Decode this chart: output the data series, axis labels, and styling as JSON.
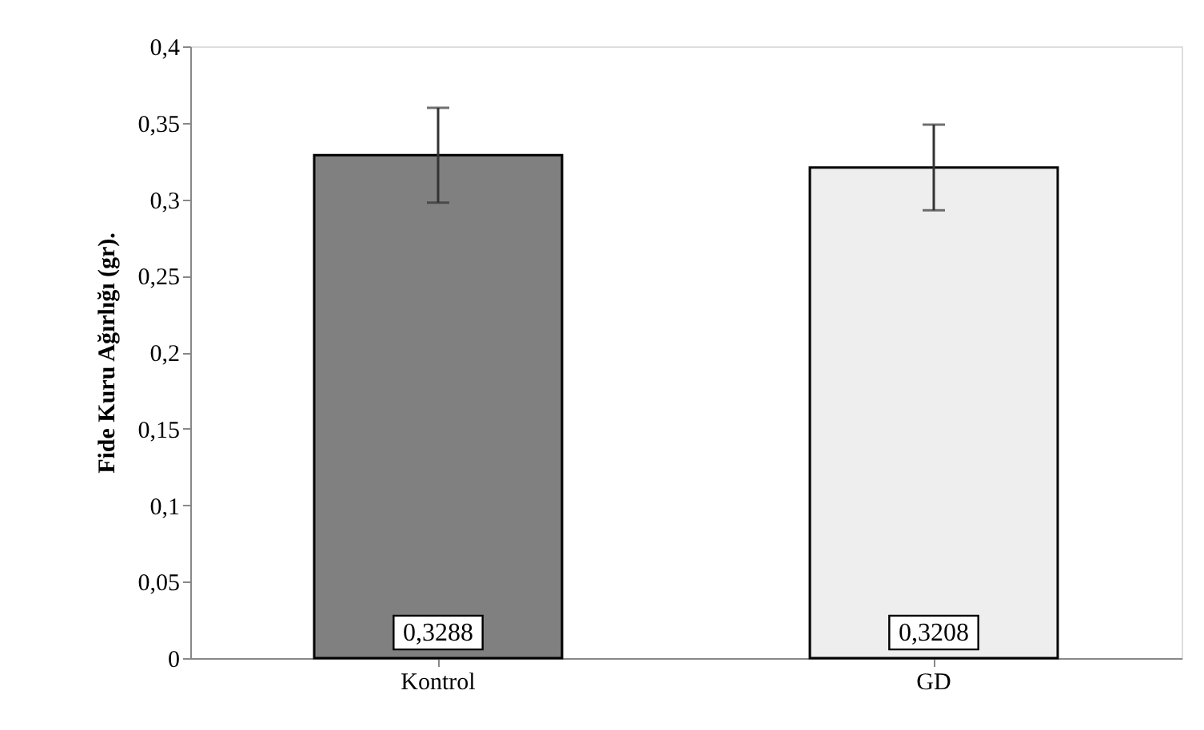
{
  "chart_data": {
    "type": "bar",
    "ylabel": "Fide Kuru Ağırlığı (gr).",
    "categories": [
      "Kontrol",
      "GD"
    ],
    "values": [
      0.3288,
      0.3208
    ],
    "colors": [
      "#808080",
      "#eeeeee"
    ],
    "errors": [
      0.031,
      0.028
    ],
    "value_labels": [
      "0,3288",
      "0,3208"
    ],
    "ylim": [
      0,
      0.4
    ],
    "yticks": [
      0,
      {
        "value": 0.05,
        "label": "0,05"
      },
      {
        "value": 0.1,
        "label": "0,1"
      },
      {
        "value": 0.15,
        "label": "0,15"
      },
      {
        "value": 0.2,
        "label": "0,2"
      },
      {
        "value": 0.25,
        "label": "0,25"
      },
      {
        "value": 0.3,
        "label": "0,3"
      },
      {
        "value": 0.35,
        "label": "0,35"
      },
      {
        "value": 0.4,
        "label": "0,4"
      }
    ],
    "grid": false
  }
}
